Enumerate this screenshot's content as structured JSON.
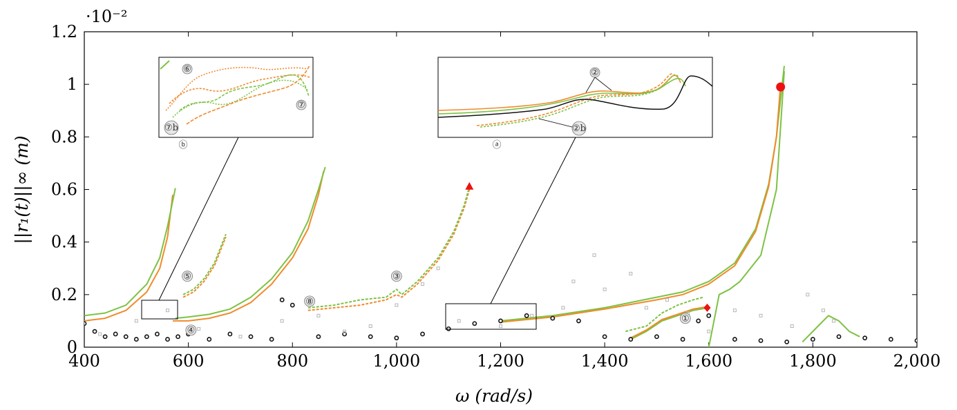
{
  "chart_data": {
    "type": "line",
    "title": "",
    "xlabel": "ω (rad/s)",
    "ylabel": "||r₁(t)||∞ (m)",
    "y_multiplier": "·10⁻²",
    "xlim": [
      400,
      2000
    ],
    "ylim": [
      0,
      1.2
    ],
    "x_ticks": [
      {
        "value": 400,
        "label": "400"
      },
      {
        "value": 600,
        "label": "600"
      },
      {
        "value": 800,
        "label": "800"
      },
      {
        "value": 1000,
        "label": "1,000"
      },
      {
        "value": 1200,
        "label": "1,200"
      },
      {
        "value": 1400,
        "label": "1,400"
      },
      {
        "value": 1600,
        "label": "1,600"
      },
      {
        "value": 1800,
        "label": "1,800"
      },
      {
        "value": 2000,
        "label": "2,000"
      }
    ],
    "y_ticks": [
      {
        "value": 0,
        "label": "0"
      },
      {
        "value": 0.2,
        "label": "0.2"
      },
      {
        "value": 0.4,
        "label": "0.4"
      },
      {
        "value": 0.6,
        "label": "0.6"
      },
      {
        "value": 0.8,
        "label": "0.8"
      },
      {
        "value": 1.0,
        "label": "1"
      },
      {
        "value": 1.2,
        "label": "1.2"
      }
    ],
    "colors": {
      "orange": "#f08a2c",
      "green": "#7cc242",
      "black": "#111111",
      "gray": "#b5b5b5",
      "red": "#ee1111"
    },
    "series": [
      {
        "color": "orange",
        "style": "solid",
        "x": [
          400,
          440,
          480,
          520,
          545,
          560,
          570
        ],
        "y": [
          0.1,
          0.11,
          0.14,
          0.21,
          0.3,
          0.42,
          0.58
        ]
      },
      {
        "color": "green",
        "style": "solid",
        "x": [
          400,
          440,
          480,
          520,
          545,
          560,
          575
        ],
        "y": [
          0.12,
          0.13,
          0.16,
          0.24,
          0.34,
          0.46,
          0.605
        ]
      },
      {
        "color": "orange",
        "style": "solid",
        "x": [
          570,
          600,
          640,
          680,
          720,
          760,
          800,
          830,
          850,
          860
        ],
        "y": [
          0.1,
          0.1,
          0.11,
          0.13,
          0.17,
          0.24,
          0.34,
          0.45,
          0.58,
          0.67
        ]
      },
      {
        "color": "green",
        "style": "solid",
        "x": [
          575,
          600,
          640,
          680,
          720,
          760,
          800,
          830,
          850,
          863
        ],
        "y": [
          0.11,
          0.115,
          0.125,
          0.145,
          0.19,
          0.26,
          0.36,
          0.48,
          0.6,
          0.685
        ]
      },
      {
        "color": "orange",
        "style": "dashed",
        "x": [
          590,
          610,
          630,
          650,
          672
        ],
        "y": [
          0.19,
          0.21,
          0.25,
          0.31,
          0.42
        ]
      },
      {
        "color": "green",
        "style": "dashed",
        "x": [
          590,
          610,
          630,
          650,
          672
        ],
        "y": [
          0.2,
          0.22,
          0.26,
          0.32,
          0.43
        ]
      },
      {
        "color": "orange",
        "style": "dashed",
        "x": [
          830,
          880,
          930,
          980,
          1000,
          1010,
          1040,
          1080,
          1110,
          1130,
          1140
        ],
        "y": [
          0.14,
          0.15,
          0.16,
          0.18,
          0.2,
          0.19,
          0.24,
          0.33,
          0.43,
          0.53,
          0.6
        ]
      },
      {
        "color": "green",
        "style": "dashed",
        "x": [
          830,
          880,
          930,
          980,
          1000,
          1010,
          1040,
          1080,
          1110,
          1130,
          1140
        ],
        "y": [
          0.15,
          0.16,
          0.18,
          0.19,
          0.22,
          0.2,
          0.25,
          0.34,
          0.44,
          0.54,
          0.61
        ]
      },
      {
        "color": "green",
        "style": "solid",
        "x": [
          1200,
          1300,
          1400,
          1500,
          1550,
          1600,
          1650,
          1690,
          1715,
          1730,
          1740,
          1745
        ],
        "y": [
          0.1,
          0.12,
          0.15,
          0.19,
          0.21,
          0.25,
          0.32,
          0.45,
          0.62,
          0.8,
          0.98,
          1.07
        ]
      },
      {
        "color": "orange",
        "style": "solid",
        "x": [
          1200,
          1300,
          1400,
          1500,
          1550,
          1600,
          1650,
          1690,
          1715,
          1730,
          1738
        ],
        "y": [
          0.095,
          0.115,
          0.145,
          0.18,
          0.2,
          0.24,
          0.31,
          0.44,
          0.61,
          0.8,
          1.0
        ]
      },
      {
        "color": "green",
        "style": "solid",
        "x": [
          1600,
          1610,
          1620,
          1640,
          1660,
          1700,
          1730,
          1745
        ],
        "y": [
          0.0,
          0.1,
          0.2,
          0.22,
          0.25,
          0.35,
          0.6,
          1.05
        ]
      },
      {
        "color": "green",
        "style": "solid",
        "x": [
          1450,
          1480,
          1510,
          1540,
          1570,
          1600
        ],
        "y": [
          0.03,
          0.06,
          0.1,
          0.12,
          0.14,
          0.15
        ]
      },
      {
        "color": "orange",
        "style": "solid",
        "x": [
          1450,
          1480,
          1510,
          1540,
          1570,
          1600
        ],
        "y": [
          0.035,
          0.065,
          0.105,
          0.125,
          0.145,
          0.155
        ]
      },
      {
        "color": "green",
        "style": "dashed",
        "x": [
          1440,
          1480,
          1510,
          1540,
          1570,
          1590
        ],
        "y": [
          0.06,
          0.08,
          0.13,
          0.16,
          0.18,
          0.19
        ]
      },
      {
        "color": "green",
        "style": "solid",
        "x": [
          1780,
          1810,
          1830,
          1850,
          1870,
          1890
        ],
        "y": [
          0.02,
          0.08,
          0.12,
          0.1,
          0.06,
          0.04
        ]
      },
      {
        "color": "black",
        "style": "markers",
        "x": [
          400,
          420,
          440,
          460,
          480,
          500,
          520,
          540,
          560,
          580,
          600,
          640,
          680,
          720,
          760,
          780,
          800,
          850,
          900,
          950,
          1000,
          1050,
          1100,
          1150,
          1200,
          1250,
          1300,
          1350,
          1400,
          1450,
          1500,
          1550,
          1580,
          1600,
          1650,
          1700,
          1750,
          1800,
          1850,
          1900,
          1950,
          2000
        ],
        "y": [
          0.09,
          0.06,
          0.04,
          0.05,
          0.04,
          0.03,
          0.04,
          0.05,
          0.03,
          0.04,
          0.05,
          0.03,
          0.05,
          0.04,
          0.03,
          0.18,
          0.16,
          0.04,
          0.05,
          0.04,
          0.035,
          0.05,
          0.07,
          0.09,
          0.1,
          0.12,
          0.11,
          0.1,
          0.04,
          0.03,
          0.04,
          0.03,
          0.1,
          0.12,
          0.03,
          0.025,
          0.02,
          0.03,
          0.04,
          0.035,
          0.03,
          0.025
        ]
      },
      {
        "color": "gray",
        "style": "markers",
        "x": [
          430,
          500,
          560,
          620,
          700,
          780,
          850,
          900,
          950,
          1000,
          1050,
          1080,
          1120,
          1200,
          1260,
          1320,
          1340,
          1380,
          1400,
          1450,
          1480,
          1520,
          1560,
          1600,
          1650,
          1700,
          1760,
          1790,
          1820,
          1840
        ],
        "y": [
          0.05,
          0.1,
          0.14,
          0.07,
          0.04,
          0.1,
          0.12,
          0.06,
          0.08,
          0.16,
          0.24,
          0.3,
          0.1,
          0.08,
          0.12,
          0.15,
          0.25,
          0.35,
          0.22,
          0.28,
          0.15,
          0.18,
          0.13,
          0.06,
          0.14,
          0.12,
          0.08,
          0.2,
          0.14,
          0.1
        ]
      }
    ],
    "special_markers": [
      {
        "shape": "triangle",
        "color": "red",
        "x": 1140,
        "y": 0.61
      },
      {
        "shape": "diamond",
        "color": "red",
        "x": 1597,
        "y": 0.15
      },
      {
        "shape": "circle",
        "color": "red",
        "x": 1738,
        "y": 0.99
      }
    ],
    "annotations": [
      {
        "label": "①",
        "x": 1555,
        "y": 0.11
      },
      {
        "label": "③",
        "x": 1000,
        "y": 0.27
      },
      {
        "label": "④",
        "x": 605,
        "y": 0.065
      },
      {
        "label": "⑤",
        "x": 598,
        "y": 0.27
      },
      {
        "label": "⑧",
        "x": 833,
        "y": 0.175
      }
    ],
    "insets": [
      {
        "id": "b",
        "label": "ⓑ",
        "marker_labels": [
          "⑥",
          "⑦",
          "⑦b"
        ],
        "source_range": {
          "x": [
            520,
            580
          ],
          "y": [
            0.11,
            0.185
          ]
        }
      },
      {
        "id": "a",
        "label": "ⓐ",
        "marker_labels": [
          "②",
          "②b"
        ],
        "source_range": {
          "x": [
            1100,
            1270
          ],
          "y": [
            0.08,
            0.17
          ]
        }
      }
    ]
  }
}
